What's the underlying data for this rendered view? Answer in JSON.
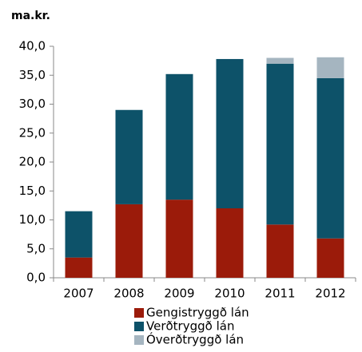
{
  "chart_data": {
    "type": "stacked_bar",
    "y_label": "ma.kr.",
    "categories": [
      "2007",
      "2008",
      "2009",
      "2010",
      "2011",
      "2012"
    ],
    "series": [
      {
        "name": "Gengistryggð lán",
        "color": "#9b1b0a",
        "values": [
          3.5,
          12.7,
          13.5,
          12.0,
          9.2,
          6.8
        ]
      },
      {
        "name": "Verðtryggð lán",
        "color": "#0d5269",
        "values": [
          8.0,
          16.3,
          21.7,
          25.8,
          27.8,
          27.7
        ]
      },
      {
        "name": "Óverðtryggð lán",
        "color": "#a5b5c0",
        "values": [
          0,
          0,
          0,
          0,
          1.0,
          3.6
        ]
      }
    ],
    "ylim": [
      0,
      40
    ],
    "yticks": [
      {
        "value": 0,
        "label": "0,0"
      },
      {
        "value": 5,
        "label": "5,0"
      },
      {
        "value": 10,
        "label": "10,0"
      },
      {
        "value": 15,
        "label": "15,0"
      },
      {
        "value": 20,
        "label": "20,0"
      },
      {
        "value": 25,
        "label": "25,0"
      },
      {
        "value": 30,
        "label": "30,0"
      },
      {
        "value": 35,
        "label": "35,0"
      },
      {
        "value": 40,
        "label": "40,0"
      }
    ],
    "grid": false,
    "legend": "bottom"
  }
}
